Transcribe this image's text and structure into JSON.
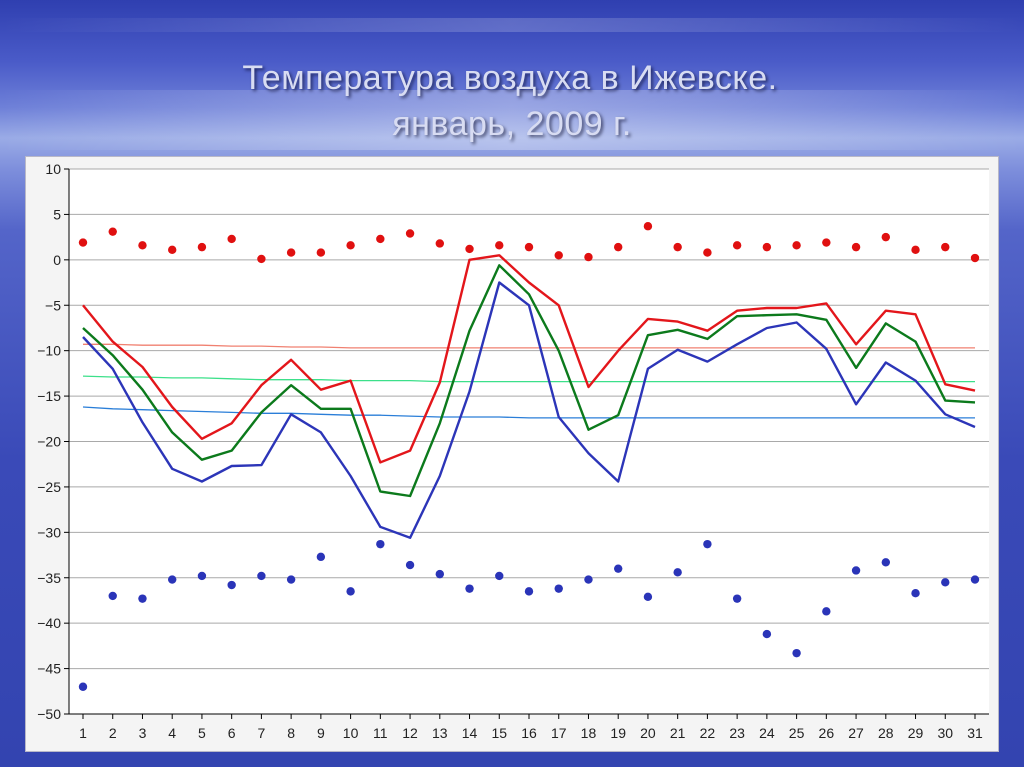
{
  "slide": {
    "title_line1": "Температура воздуха в Ижевске.",
    "title_line2": "январь, 2009 г."
  },
  "colors": {
    "max_line": "#e3161b",
    "mean_line": "#0c7a1c",
    "min_line": "#2c35b8",
    "max_dots": "#e01010",
    "min_dots": "#2a34b8",
    "norm_max": "#f08070",
    "norm_mean": "#3ce08a",
    "norm_min": "#2a7ed8"
  },
  "chart_data": {
    "type": "line",
    "x": [
      1,
      2,
      3,
      4,
      5,
      6,
      7,
      8,
      9,
      10,
      11,
      12,
      13,
      14,
      15,
      16,
      17,
      18,
      19,
      20,
      21,
      22,
      23,
      24,
      25,
      26,
      27,
      28,
      29,
      30,
      31
    ],
    "ylim": [
      -50,
      10
    ],
    "yticks": [
      10,
      5,
      0,
      -5,
      -10,
      -15,
      -20,
      -25,
      -30,
      -35,
      -40,
      -45,
      -50
    ],
    "grid": true,
    "series": [
      {
        "style": "line",
        "color_key": "max_line",
        "values": [
          -5.0,
          -9.0,
          -11.8,
          -16.2,
          -19.7,
          -18.0,
          -13.8,
          -11.0,
          -14.3,
          -13.3,
          -22.3,
          -21.0,
          -13.5,
          0.0,
          0.5,
          -2.5,
          -5.0,
          -14.0,
          -10.0,
          -6.5,
          -6.8,
          -7.8,
          -5.6,
          -5.3,
          -5.3,
          -4.8,
          -9.3,
          -5.6,
          -6.0,
          -13.7,
          -14.4
        ]
      },
      {
        "style": "line",
        "color_key": "mean_line",
        "values": [
          -7.5,
          -10.5,
          -14.3,
          -19.0,
          -22.0,
          -21.0,
          -16.8,
          -13.8,
          -16.4,
          -16.4,
          -25.5,
          -26.0,
          -18.0,
          -7.8,
          -0.6,
          -3.8,
          -10.0,
          -18.7,
          -17.1,
          -8.3,
          -7.7,
          -8.7,
          -6.2,
          -6.1,
          -6.0,
          -6.6,
          -11.9,
          -7.0,
          -9.0,
          -15.5,
          -15.7
        ]
      },
      {
        "style": "line",
        "color_key": "min_line",
        "values": [
          -8.5,
          -12.0,
          -17.9,
          -23.0,
          -24.4,
          -22.7,
          -22.6,
          -17.0,
          -19.0,
          -23.8,
          -29.4,
          -30.6,
          -23.8,
          -14.5,
          -2.5,
          -5.0,
          -17.3,
          -21.3,
          -24.4,
          -12.0,
          -9.9,
          -11.2,
          -9.3,
          -7.5,
          -6.9,
          -9.8,
          -15.9,
          -11.3,
          -13.3,
          -17.0,
          -18.4
        ]
      },
      {
        "style": "dots",
        "color_key": "max_dots",
        "values": [
          1.9,
          3.1,
          1.6,
          1.1,
          1.4,
          2.3,
          0.1,
          0.8,
          0.8,
          1.6,
          2.3,
          2.9,
          1.8,
          1.2,
          1.6,
          1.4,
          0.5,
          0.3,
          1.4,
          3.7,
          1.4,
          0.8,
          1.6,
          1.4,
          1.6,
          1.9,
          1.4,
          2.5,
          1.1,
          1.4,
          0.2
        ]
      },
      {
        "style": "dots",
        "color_key": "min_dots",
        "values": [
          -47.0,
          -37.0,
          -37.3,
          -35.2,
          -34.8,
          -35.8,
          -34.8,
          -35.2,
          -32.7,
          -36.5,
          -31.3,
          -33.6,
          -34.6,
          -36.2,
          -34.8,
          -36.5,
          -36.2,
          -35.2,
          -34.0,
          -37.1,
          -34.4,
          -31.3,
          -37.3,
          -41.2,
          -43.3,
          -38.7,
          -34.2,
          -33.3,
          -36.7,
          -35.5,
          -35.2
        ]
      },
      {
        "style": "thin-line",
        "color_key": "norm_max",
        "values": [
          -9.3,
          -9.3,
          -9.4,
          -9.4,
          -9.4,
          -9.5,
          -9.5,
          -9.6,
          -9.6,
          -9.7,
          -9.7,
          -9.7,
          -9.7,
          -9.7,
          -9.7,
          -9.7,
          -9.7,
          -9.7,
          -9.7,
          -9.7,
          -9.7,
          -9.7,
          -9.7,
          -9.7,
          -9.7,
          -9.7,
          -9.7,
          -9.7,
          -9.7,
          -9.7,
          -9.7
        ]
      },
      {
        "style": "thin-line",
        "color_key": "norm_mean",
        "values": [
          -12.8,
          -12.9,
          -12.9,
          -13.0,
          -13.0,
          -13.1,
          -13.2,
          -13.2,
          -13.2,
          -13.3,
          -13.3,
          -13.3,
          -13.4,
          -13.4,
          -13.4,
          -13.4,
          -13.4,
          -13.4,
          -13.4,
          -13.4,
          -13.4,
          -13.4,
          -13.4,
          -13.4,
          -13.4,
          -13.4,
          -13.4,
          -13.4,
          -13.4,
          -13.4,
          -13.4
        ]
      },
      {
        "style": "thin-line",
        "color_key": "norm_min",
        "values": [
          -16.2,
          -16.4,
          -16.5,
          -16.6,
          -16.7,
          -16.8,
          -16.9,
          -16.9,
          -17.0,
          -17.1,
          -17.1,
          -17.2,
          -17.3,
          -17.3,
          -17.3,
          -17.4,
          -17.4,
          -17.4,
          -17.4,
          -17.4,
          -17.4,
          -17.4,
          -17.4,
          -17.4,
          -17.4,
          -17.4,
          -17.4,
          -17.4,
          -17.4,
          -17.4,
          -17.4
        ]
      }
    ]
  }
}
